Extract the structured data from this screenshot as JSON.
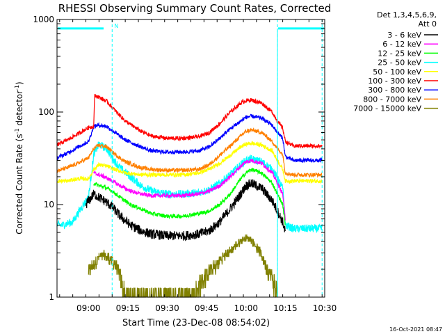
{
  "chart_data": {
    "type": "line",
    "title": "RHESSI Observing Summary Count Rates, Corrected",
    "xlabel": "Start Time (23-Dec-08 08:54:02)",
    "ylabel_main": "Corrected Count Rate (s",
    "ylabel_sup1": "-1",
    "ylabel_mid": " detector",
    "ylabel_sup2": "-1",
    "ylabel_end": ")",
    "footer": "16-Oct-2021 08:47",
    "legend_header_1": "Det 1,3,4,5,6,9,",
    "legend_header_2": "Att 0",
    "x_unit": "minutes",
    "xlim": [
      -6,
      96
    ],
    "x_ticks": [
      {
        "label": "09:00",
        "x": 6
      },
      {
        "label": "09:15",
        "x": 21
      },
      {
        "label": "09:30",
        "x": 36
      },
      {
        "label": "09:45",
        "x": 51
      },
      {
        "label": "10:00",
        "x": 66
      },
      {
        "label": "10:15",
        "x": 81
      },
      {
        "label": "10:30",
        "x": 96
      }
    ],
    "y_scale": "log",
    "ylim": [
      1,
      1000
    ],
    "y_ticks": [
      {
        "label": "1",
        "y": 1
      },
      {
        "label": "10",
        "y": 10
      },
      {
        "label": "100",
        "y": 100
      },
      {
        "label": "1000",
        "y": 1000
      }
    ],
    "night_marker": {
      "label": "N",
      "x": 15
    },
    "dashed_lines_x": [
      15,
      78,
      95
    ],
    "saa_segments": [
      {
        "x0": -6,
        "x1": 12,
        "y": 800
      },
      {
        "x0": 78,
        "x1": 96,
        "y": 800
      }
    ],
    "series": [
      {
        "name": "3 - 6 keV",
        "color": "#000000",
        "x": [
          5,
          8,
          10,
          12,
          15,
          18,
          22,
          26,
          30,
          36,
          42,
          48,
          52,
          56,
          60,
          64,
          66,
          68,
          72,
          76,
          78,
          80,
          81
        ],
        "y": [
          10,
          13,
          12,
          11,
          9.5,
          7.5,
          6,
          5.2,
          4.8,
          4.6,
          4.6,
          4.8,
          5.2,
          6.5,
          9,
          13,
          16,
          17,
          15,
          11,
          8.5,
          6.5,
          5
        ]
      },
      {
        "name": "6 - 12 keV",
        "color": "#ff00ff",
        "x": [
          8,
          10,
          12,
          15,
          18,
          22,
          26,
          30,
          36,
          42,
          48,
          52,
          56,
          60,
          64,
          66,
          68,
          72,
          76,
          78,
          80,
          81
        ],
        "y": [
          22,
          21,
          20,
          18,
          16,
          14,
          13,
          12.5,
          12.5,
          12.5,
          13,
          14,
          16,
          20,
          26,
          29,
          30,
          28,
          22,
          17,
          13,
          7
        ]
      },
      {
        "name": "12 - 25 keV",
        "color": "#00ff00",
        "x": [
          8,
          10,
          12,
          15,
          18,
          22,
          26,
          30,
          36,
          42,
          48,
          52,
          56,
          60,
          64,
          66,
          68,
          72,
          76,
          78,
          80,
          81
        ],
        "y": [
          17,
          16,
          15.5,
          14,
          12,
          10,
          9,
          8,
          7.5,
          7.5,
          8,
          8.5,
          10,
          13,
          19,
          22,
          24,
          22,
          17,
          13,
          10,
          6
        ]
      },
      {
        "name": "25 - 50 keV",
        "color": "#00ffff",
        "x": [
          -6,
          -4,
          0,
          3,
          6,
          8,
          10,
          13,
          15,
          18,
          22,
          26,
          30,
          36,
          42,
          48,
          52,
          56,
          60,
          64,
          66,
          68,
          72,
          76,
          78,
          80,
          81,
          84,
          88,
          92,
          95
        ],
        "y": [
          6,
          6,
          6.5,
          9,
          12,
          35,
          45,
          40,
          32,
          25,
          20,
          16,
          14,
          13,
          13,
          13.5,
          14.5,
          17,
          21,
          27,
          30,
          31,
          29,
          24,
          19,
          15,
          6,
          5.5,
          5.5,
          5.5,
          5.5
        ]
      },
      {
        "name": "50 - 100 keV",
        "color": "#ffff00",
        "x": [
          -6,
          -2,
          2,
          6,
          8,
          10,
          13,
          16,
          20,
          26,
          30,
          36,
          42,
          48,
          52,
          56,
          60,
          64,
          66,
          68,
          72,
          76,
          78,
          80,
          81,
          84,
          88,
          92,
          95
        ],
        "y": [
          18,
          18,
          19,
          19,
          24,
          27,
          26,
          24,
          22,
          21,
          21,
          21,
          21,
          22,
          24,
          28,
          34,
          42,
          45,
          46,
          44,
          38,
          30,
          24,
          18,
          18,
          18,
          18,
          18
        ]
      },
      {
        "name": "100 - 300 keV",
        "color": "#ff0000",
        "x": [
          -6,
          -2,
          2,
          6,
          8,
          8.3,
          10,
          13,
          16,
          20,
          26,
          30,
          36,
          42,
          48,
          52,
          56,
          60,
          64,
          66,
          68,
          72,
          76,
          78,
          80,
          81,
          84,
          88,
          92,
          95
        ],
        "y": [
          44,
          50,
          58,
          68,
          70,
          150,
          145,
          130,
          105,
          80,
          62,
          55,
          52,
          52,
          54,
          60,
          75,
          100,
          125,
          133,
          135,
          125,
          100,
          80,
          67,
          48,
          43,
          43,
          43,
          43
        ]
      },
      {
        "name": "300 - 800 keV",
        "color": "#0000ff",
        "x": [
          -6,
          -2,
          2,
          6,
          8,
          10,
          13,
          16,
          20,
          26,
          30,
          36,
          42,
          48,
          52,
          56,
          60,
          64,
          66,
          68,
          72,
          76,
          78,
          80,
          81,
          84,
          88,
          92,
          95
        ],
        "y": [
          32,
          36,
          42,
          48,
          70,
          72,
          70,
          60,
          50,
          42,
          38,
          37,
          37,
          38,
          42,
          52,
          66,
          80,
          88,
          90,
          86,
          72,
          60,
          52,
          33,
          30,
          30,
          30,
          30
        ]
      },
      {
        "name": "800 - 7000 keV",
        "color": "#ff8000",
        "x": [
          -6,
          -2,
          2,
          6,
          8,
          10,
          13,
          16,
          20,
          26,
          30,
          36,
          42,
          48,
          52,
          56,
          60,
          64,
          66,
          68,
          72,
          76,
          78,
          80,
          81,
          84,
          88,
          92,
          95
        ],
        "y": [
          23,
          25,
          28,
          32,
          40,
          44,
          42,
          35,
          29,
          25,
          24,
          23.5,
          23.5,
          24,
          27,
          34,
          43,
          55,
          62,
          64,
          60,
          48,
          40,
          35,
          22,
          21,
          21,
          21,
          21
        ]
      },
      {
        "name": "7000 - 15000 keV",
        "color": "#808000",
        "x": [
          6,
          8,
          10,
          12,
          14,
          16,
          18,
          20,
          24,
          30,
          36,
          42,
          46,
          48,
          50,
          52,
          54,
          56,
          58,
          60,
          62,
          64,
          66,
          68,
          70,
          72,
          74,
          76,
          78
        ],
        "y": [
          1.9,
          2.3,
          2.7,
          2.8,
          2.6,
          2.3,
          1.7,
          1,
          1,
          1,
          1,
          1,
          1,
          1.3,
          1.6,
          1.9,
          2.1,
          2.5,
          2.8,
          3.1,
          3.6,
          4,
          4.4,
          4.2,
          3.5,
          2.8,
          2.1,
          1.6,
          1.1
        ]
      }
    ]
  },
  "colors": {
    "axis": "#000000",
    "saa_bar": "#00ffff",
    "dashed_line": "#00ffff",
    "background": "#ffffff"
  }
}
